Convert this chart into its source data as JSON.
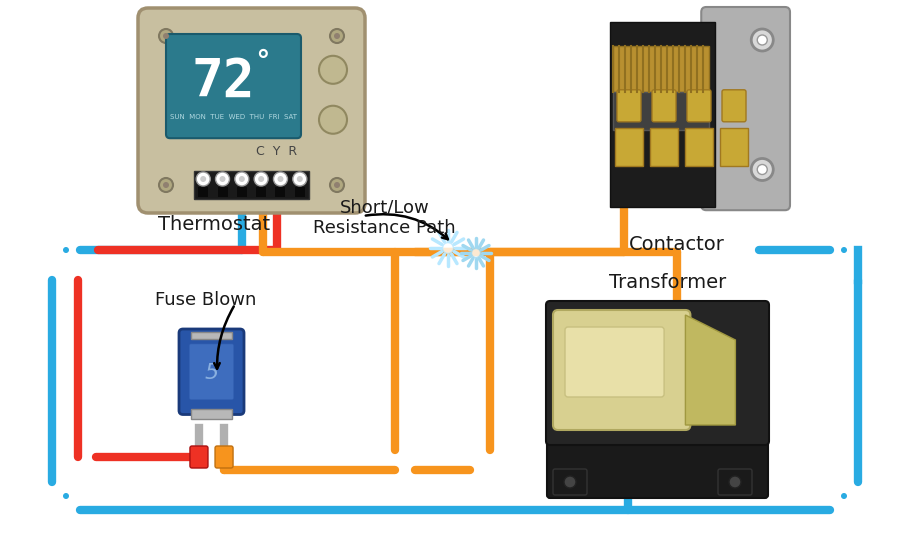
{
  "bg_color": "#ffffff",
  "wire_blue": "#29ABE2",
  "wire_red": "#EE3124",
  "wire_yellow": "#F7941D",
  "thermostat_body": "#C8BFA0",
  "thermostat_screen": "#2B7A8C",
  "contactor_dark": "#2A2A2A",
  "contactor_silver": "#909090",
  "contactor_gold": "#C8A835",
  "transformer_dark": "#2A2A2A",
  "transformer_core": "#D0C87A",
  "fuse_blue": "#2655A0",
  "fuse_red": "#EE3124",
  "fuse_yellow": "#F7941D",
  "label_color": "#1A1A1A",
  "thermostat_label": "Thermostat",
  "contactor_label": "Contactor",
  "transformer_label": "Transformer",
  "fuse_label": "Fuse Blown",
  "spark_label": "Short/Low\nResistance Path"
}
